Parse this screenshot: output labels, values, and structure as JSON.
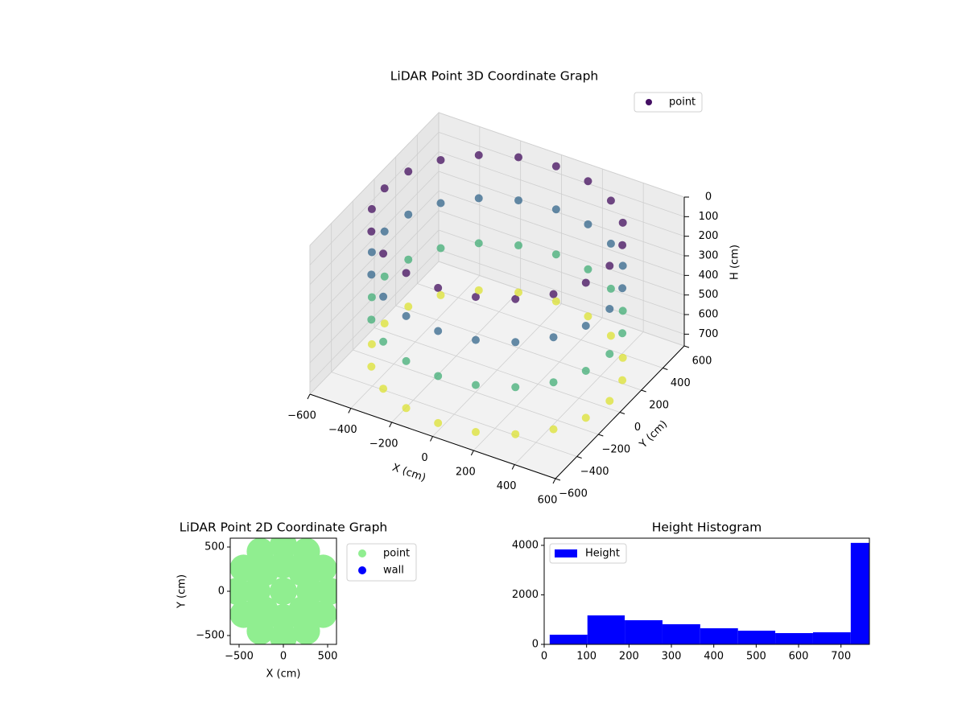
{
  "chart_data": [
    {
      "type": "scatter3d",
      "title": "LiDAR Point 3D Coordinate Graph",
      "xlabel": "X (cm)",
      "ylabel": "Y (cm)",
      "zlabel": "H (cm)",
      "xlim": [
        -600,
        600
      ],
      "ylim": [
        -600,
        600
      ],
      "zlim": [
        0,
        760
      ],
      "z_inverted": true,
      "xticks": [
        {
          "value": -600,
          "label": "−600"
        },
        {
          "value": -400,
          "label": "−400"
        },
        {
          "value": -200,
          "label": "−200"
        },
        0,
        200,
        400,
        600
      ],
      "yticks": [
        {
          "value": -600,
          "label": "−600"
        },
        {
          "value": -400,
          "label": "−400"
        },
        {
          "value": -200,
          "label": "−200"
        },
        0,
        200,
        400,
        600
      ],
      "zticks": [
        0,
        100,
        200,
        300,
        400,
        500,
        600,
        700
      ],
      "colormap": "viridis",
      "grid": true,
      "legend": "upper right",
      "series": [
        {
          "name": "point",
          "color": "#440f63",
          "x": [
            550,
            523,
            445,
            323,
            170,
            0,
            -170,
            -323,
            -445,
            -523,
            -550,
            -523,
            -445,
            -323,
            -170,
            0,
            170,
            323,
            445,
            523,
            550,
            523,
            445,
            323,
            170,
            0,
            -170,
            -323,
            -445,
            -523,
            -550,
            -523,
            -445,
            -323,
            -170,
            0,
            170,
            323,
            445,
            523,
            550,
            523,
            445,
            323,
            170,
            0,
            -170,
            -323,
            -445,
            -523,
            -550,
            -523,
            -445,
            -323,
            -170,
            0,
            170,
            323,
            445,
            523,
            550,
            523,
            445,
            323,
            170,
            0,
            -170,
            -323,
            -445,
            -523,
            -550,
            -523,
            -445,
            -323,
            -170,
            0,
            170,
            323,
            445,
            523
          ],
          "y": [
            0,
            170,
            323,
            445,
            523,
            550,
            523,
            445,
            323,
            170,
            0,
            -170,
            -323,
            -445,
            -523,
            -550,
            -523,
            -445,
            -323,
            -170,
            0,
            170,
            323,
            445,
            523,
            550,
            523,
            445,
            323,
            170,
            0,
            -170,
            -323,
            -445,
            -523,
            -550,
            -523,
            -445,
            -323,
            -170,
            0,
            170,
            323,
            445,
            523,
            550,
            523,
            445,
            323,
            170,
            0,
            -170,
            -323,
            -445,
            -523,
            -550,
            -523,
            -445,
            -323,
            -170,
            0,
            170,
            323,
            445,
            523,
            550,
            523,
            445,
            323,
            170,
            0,
            -170,
            -323,
            -445,
            -523,
            -550,
            -523,
            -445,
            -323,
            -170
          ],
          "z": [
            30,
            30,
            30,
            30,
            30,
            30,
            30,
            30,
            30,
            30,
            30,
            30,
            30,
            30,
            30,
            30,
            30,
            30,
            30,
            30,
            250,
            250,
            250,
            250,
            250,
            250,
            250,
            250,
            250,
            250,
            250,
            250,
            250,
            250,
            250,
            250,
            250,
            250,
            250,
            250,
            480,
            480,
            480,
            480,
            480,
            480,
            480,
            480,
            480,
            480,
            480,
            480,
            480,
            480,
            480,
            480,
            480,
            480,
            480,
            480,
            720,
            720,
            720,
            720,
            720,
            720,
            720,
            720,
            720,
            720,
            720,
            720,
            720,
            720,
            720,
            720,
            720,
            720,
            720,
            720
          ]
        }
      ]
    },
    {
      "type": "scatter",
      "title": "LiDAR Point 2D Coordinate Graph",
      "xlabel": "X (cm)",
      "ylabel": "Y (cm)",
      "xlim": [
        -600,
        600
      ],
      "ylim": [
        -600,
        600
      ],
      "xticks": [
        {
          "value": -500,
          "label": "−500"
        },
        0,
        500
      ],
      "yticks": [
        {
          "value": -500,
          "label": "−500"
        },
        0,
        500
      ],
      "legend": "outside right",
      "series": [
        {
          "name": "point",
          "color": "#90ee90",
          "x": [
            520,
            450,
            260,
            0,
            -260,
            -450,
            -520,
            -450,
            -260,
            0,
            260,
            450,
            300,
            212,
            0,
            -212,
            -300,
            -212,
            0,
            212,
            0
          ],
          "y": [
            0,
            260,
            450,
            520,
            450,
            260,
            0,
            -260,
            -450,
            -520,
            -450,
            -260,
            0,
            212,
            300,
            212,
            0,
            -212,
            -300,
            -212,
            0
          ]
        },
        {
          "name": "wall",
          "color": "#0000ff",
          "x": [],
          "y": []
        }
      ]
    },
    {
      "type": "histogram",
      "title": "Height Histogram",
      "bins": [
        13,
        102,
        190,
        279,
        368,
        457,
        545,
        634,
        723,
        767
      ],
      "values": [
        390,
        1170,
        975,
        813,
        650,
        553,
        455,
        488,
        4100
      ],
      "name": "Height",
      "color": "#0000ff",
      "legend": "upper left",
      "xlim": [
        0,
        767
      ],
      "ylim": [
        0,
        4290
      ],
      "xticks": [
        0,
        100,
        200,
        300,
        400,
        500,
        600,
        700
      ],
      "yticks": [
        0,
        2000,
        4000
      ]
    }
  ]
}
